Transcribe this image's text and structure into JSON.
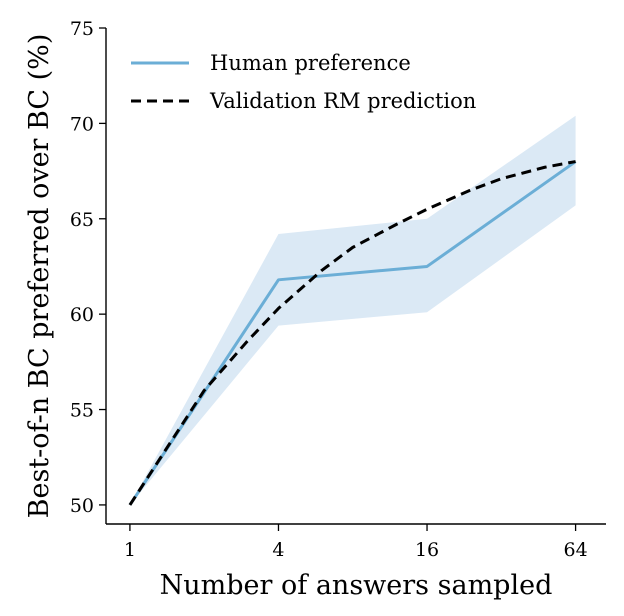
{
  "chart_data": {
    "type": "line",
    "xlabel": "Number of answers sampled",
    "ylabel": "Best-of-n BC preferred over BC (%)",
    "x_scale": "log2",
    "x": [
      1,
      4,
      16,
      64
    ],
    "x_ticks": [
      "1",
      "4",
      "16",
      "64"
    ],
    "xlim": [
      0.8,
      85
    ],
    "y_ticks": [
      "50",
      "55",
      "60",
      "65",
      "70",
      "75"
    ],
    "ylim": [
      49,
      75
    ],
    "grid": false,
    "legend": "top-left",
    "series": [
      {
        "name": "Human preference",
        "style": "solid",
        "color": "#6baed6",
        "band_color": "#dbe9f5",
        "x": [
          1,
          4,
          16,
          64
        ],
        "values": [
          50.0,
          61.8,
          62.5,
          68.0
        ],
        "lower": [
          50.0,
          59.4,
          60.1,
          65.7
        ],
        "upper": [
          50.0,
          64.2,
          65.0,
          70.4
        ]
      },
      {
        "name": "Validation RM prediction",
        "style": "dashed",
        "color": "#000000",
        "x": [
          1,
          2,
          3,
          4,
          6,
          8,
          12,
          16,
          24,
          32,
          48,
          64
        ],
        "values": [
          50.0,
          56.0,
          58.6,
          60.3,
          62.3,
          63.5,
          64.7,
          65.5,
          66.5,
          67.1,
          67.7,
          68.0
        ]
      }
    ]
  }
}
